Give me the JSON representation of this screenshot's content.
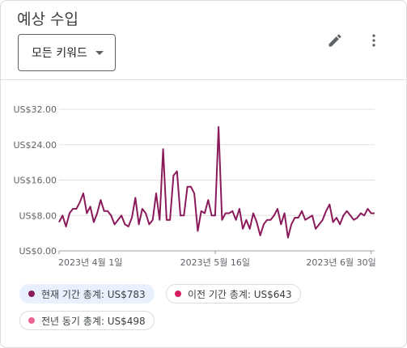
{
  "card": {
    "title": "예상 수입",
    "dropdown_label": "모든 키워드",
    "icons": {
      "edit": "pencil-icon",
      "more": "more-vert-icon",
      "dropdown": "caret-down-icon"
    }
  },
  "legend": [
    {
      "label": "현재 기간 총계: US$783",
      "color": "#8b1a5a",
      "active": true
    },
    {
      "label": "이전 기간 총계: US$643",
      "color": "#d81b60",
      "active": false
    },
    {
      "label": "전년 동기 총계: US$498",
      "color": "#f06292",
      "active": false
    }
  ],
  "chart_data": {
    "type": "line",
    "y_tick_labels": [
      "US$0.00",
      "US$8.00",
      "US$16.00",
      "US$24.00",
      "US$32.00"
    ],
    "y_ticks": [
      0,
      8,
      16,
      24,
      32
    ],
    "ylim": [
      0,
      32
    ],
    "x_tick_labels": [
      "2023년 4월 1일",
      "2023년 5월 16일",
      "2023년 6월 30일"
    ],
    "x_tick_positions": [
      0,
      45,
      90
    ],
    "grid": true,
    "series": [
      {
        "name": "현재 기간 총계: US$783",
        "color": "#8b1a5a",
        "x": [
          0,
          1,
          2,
          3,
          4,
          5,
          6,
          7,
          8,
          9,
          10,
          11,
          12,
          13,
          14,
          15,
          16,
          17,
          18,
          19,
          20,
          21,
          22,
          23,
          24,
          25,
          26,
          27,
          28,
          29,
          30,
          31,
          32,
          33,
          34,
          35,
          36,
          37,
          38,
          39,
          40,
          41,
          42,
          43,
          44,
          45,
          46,
          47,
          48,
          49,
          50,
          51,
          52,
          53,
          54,
          55,
          56,
          57,
          58,
          59,
          60,
          61,
          62,
          63,
          64,
          65,
          66,
          67,
          68,
          69,
          70,
          71,
          72,
          73,
          74,
          75,
          76,
          77,
          78,
          79,
          80,
          81,
          82,
          83,
          84,
          85,
          86,
          87,
          88,
          89,
          90,
          91
        ],
        "values": [
          6.5,
          8.0,
          5.5,
          8.5,
          9.5,
          9.5,
          11.0,
          13.0,
          8.5,
          10.0,
          6.5,
          8.5,
          11.5,
          9.0,
          9.0,
          8.0,
          6.0,
          7.0,
          8.0,
          6.0,
          5.5,
          7.5,
          12.0,
          6.0,
          9.5,
          8.5,
          6.0,
          7.0,
          13.0,
          7.0,
          23.0,
          7.0,
          7.0,
          17.0,
          18.0,
          8.0,
          8.0,
          14.5,
          14.5,
          13.0,
          4.5,
          9.0,
          8.5,
          11.5,
          8.0,
          8.0,
          28.0,
          7.0,
          8.5,
          8.5,
          9.0,
          7.0,
          9.5,
          5.0,
          7.0,
          5.0,
          8.5,
          6.5,
          3.5,
          6.0,
          7.0,
          7.0,
          8.0,
          9.5,
          6.0,
          8.5,
          3.0,
          6.0,
          7.5,
          7.5,
          9.0,
          7.0,
          7.5,
          8.0,
          5.0,
          6.0,
          7.0,
          9.0,
          10.5,
          6.5,
          7.5,
          6.0,
          8.0,
          9.0,
          8.0,
          7.0,
          7.5,
          8.5,
          8.0,
          9.5,
          8.5,
          8.5
        ]
      }
    ]
  }
}
